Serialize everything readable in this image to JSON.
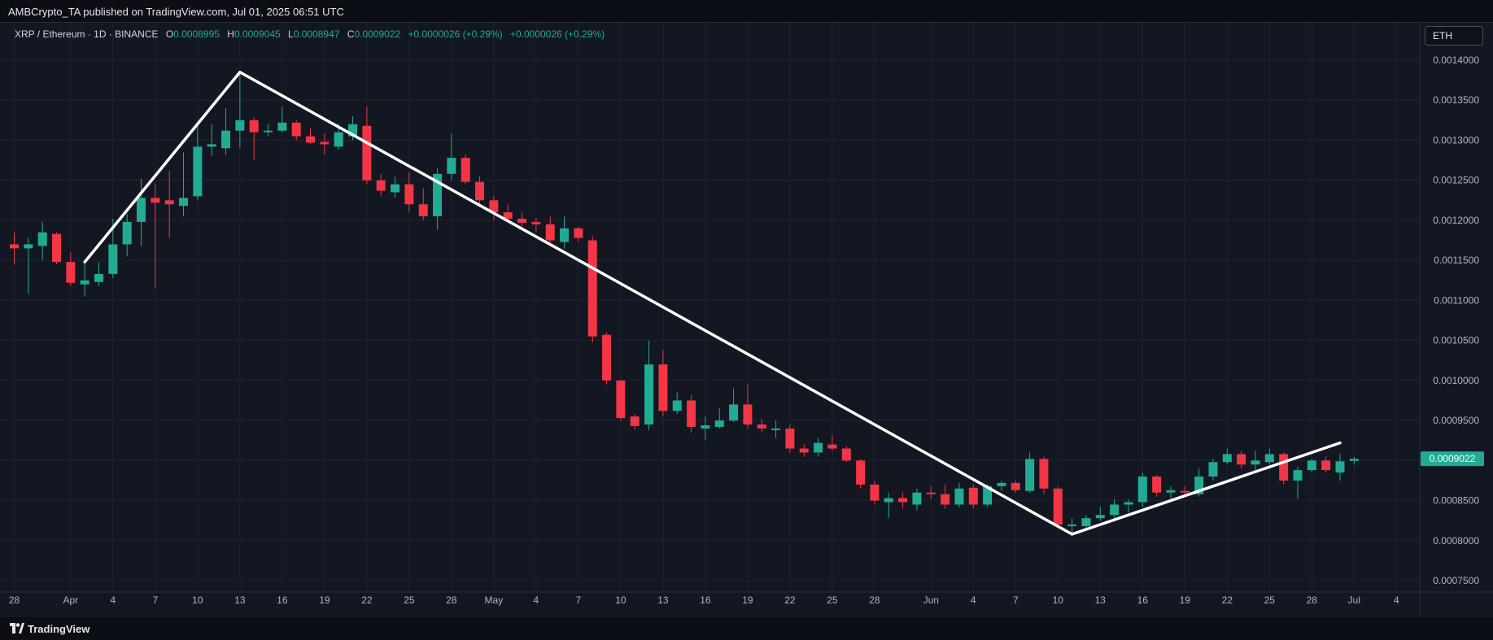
{
  "header": {
    "publish_line": "AMBCrypto_TA published on TradingView.com, Jul 01, 2025 06:51 UTC"
  },
  "legend": {
    "symbol": "XRP / Ethereum · 1D · BINANCE",
    "open_label": "O",
    "open_value": "0.0008995",
    "high_label": "H",
    "high_value": "0.0009045",
    "low_label": "L",
    "low_value": "0.0008947",
    "close_label": "C",
    "close_value": "0.0009022",
    "change1": "+0.0000026 (+0.29%)",
    "change2": "+0.0000026 (+0.29%)"
  },
  "currency_button": "ETH",
  "footer": {
    "brand": "TradingView"
  },
  "colors": {
    "background": "#131722",
    "up": "#22ab94",
    "down": "#f23645",
    "grid": "#1f2330",
    "trendline": "#ffffff"
  },
  "chart_data": {
    "type": "candlestick",
    "symbol": "XRP/ETH",
    "interval": "1D",
    "ylim": [
      0.00074,
      0.00143
    ],
    "y_ticks": [
      "0.0014000",
      "0.0013500",
      "0.0013000",
      "0.0012500",
      "0.0012000",
      "0.0011500",
      "0.0011000",
      "0.0010500",
      "0.0010000",
      "0.0009500",
      "0.0009000",
      "0.0008500",
      "0.0008000",
      "0.0007500"
    ],
    "x_labels": [
      {
        "text": "28",
        "date": "2025-03-28"
      },
      {
        "text": "Apr",
        "date": "2025-04-01"
      },
      {
        "text": "4",
        "date": "2025-04-04"
      },
      {
        "text": "7",
        "date": "2025-04-07"
      },
      {
        "text": "10",
        "date": "2025-04-10"
      },
      {
        "text": "13",
        "date": "2025-04-13"
      },
      {
        "text": "16",
        "date": "2025-04-16"
      },
      {
        "text": "19",
        "date": "2025-04-19"
      },
      {
        "text": "22",
        "date": "2025-04-22"
      },
      {
        "text": "25",
        "date": "2025-04-25"
      },
      {
        "text": "28",
        "date": "2025-04-28"
      },
      {
        "text": "May",
        "date": "2025-05-01"
      },
      {
        "text": "4",
        "date": "2025-05-04"
      },
      {
        "text": "7",
        "date": "2025-05-07"
      },
      {
        "text": "10",
        "date": "2025-05-10"
      },
      {
        "text": "13",
        "date": "2025-05-13"
      },
      {
        "text": "16",
        "date": "2025-05-16"
      },
      {
        "text": "19",
        "date": "2025-05-19"
      },
      {
        "text": "22",
        "date": "2025-05-22"
      },
      {
        "text": "25",
        "date": "2025-05-25"
      },
      {
        "text": "28",
        "date": "2025-05-28"
      },
      {
        "text": "Jun",
        "date": "2025-06-01"
      },
      {
        "text": "4",
        "date": "2025-06-04"
      },
      {
        "text": "7",
        "date": "2025-06-07"
      },
      {
        "text": "10",
        "date": "2025-06-10"
      },
      {
        "text": "13",
        "date": "2025-06-13"
      },
      {
        "text": "16",
        "date": "2025-06-16"
      },
      {
        "text": "19",
        "date": "2025-06-19"
      },
      {
        "text": "22",
        "date": "2025-06-22"
      },
      {
        "text": "25",
        "date": "2025-06-25"
      },
      {
        "text": "28",
        "date": "2025-06-28"
      },
      {
        "text": "Jul",
        "date": "2025-07-01"
      },
      {
        "text": "4",
        "date": "2025-07-04"
      }
    ],
    "last_price": "0.0009022",
    "candles": [
      {
        "date": "2025-03-28",
        "o": 0.00117,
        "h": 0.001185,
        "l": 0.001145,
        "c": 0.001165
      },
      {
        "date": "2025-03-29",
        "o": 0.001165,
        "h": 0.001178,
        "l": 0.001108,
        "c": 0.00117
      },
      {
        "date": "2025-03-30",
        "o": 0.001168,
        "h": 0.001198,
        "l": 0.00115,
        "c": 0.001185
      },
      {
        "date": "2025-03-31",
        "o": 0.001183,
        "h": 0.001185,
        "l": 0.001145,
        "c": 0.001148
      },
      {
        "date": "2025-04-01",
        "o": 0.001148,
        "h": 0.00116,
        "l": 0.001118,
        "c": 0.001122
      },
      {
        "date": "2025-04-02",
        "o": 0.00112,
        "h": 0.00115,
        "l": 0.001105,
        "c": 0.001125
      },
      {
        "date": "2025-04-03",
        "o": 0.001123,
        "h": 0.001148,
        "l": 0.001118,
        "c": 0.001133
      },
      {
        "date": "2025-04-04",
        "o": 0.001133,
        "h": 0.001202,
        "l": 0.001128,
        "c": 0.00117
      },
      {
        "date": "2025-04-05",
        "o": 0.00117,
        "h": 0.001208,
        "l": 0.001155,
        "c": 0.001198
      },
      {
        "date": "2025-04-06",
        "o": 0.001198,
        "h": 0.001252,
        "l": 0.001168,
        "c": 0.001228
      },
      {
        "date": "2025-04-07",
        "o": 0.001228,
        "h": 0.001245,
        "l": 0.001115,
        "c": 0.001222
      },
      {
        "date": "2025-04-08",
        "o": 0.001225,
        "h": 0.001262,
        "l": 0.001178,
        "c": 0.00122
      },
      {
        "date": "2025-04-09",
        "o": 0.001218,
        "h": 0.001285,
        "l": 0.001205,
        "c": 0.001228
      },
      {
        "date": "2025-04-10",
        "o": 0.00123,
        "h": 0.001318,
        "l": 0.001225,
        "c": 0.001292
      },
      {
        "date": "2025-04-11",
        "o": 0.001292,
        "h": 0.00132,
        "l": 0.00128,
        "c": 0.001295
      },
      {
        "date": "2025-04-12",
        "o": 0.00129,
        "h": 0.00134,
        "l": 0.001282,
        "c": 0.001312
      },
      {
        "date": "2025-04-13",
        "o": 0.001312,
        "h": 0.001385,
        "l": 0.00129,
        "c": 0.001325
      },
      {
        "date": "2025-04-14",
        "o": 0.001325,
        "h": 0.001328,
        "l": 0.001275,
        "c": 0.00131
      },
      {
        "date": "2025-04-15",
        "o": 0.00131,
        "h": 0.00132,
        "l": 0.001305,
        "c": 0.001312
      },
      {
        "date": "2025-04-16",
        "o": 0.001312,
        "h": 0.001342,
        "l": 0.00131,
        "c": 0.001322
      },
      {
        "date": "2025-04-17",
        "o": 0.001322,
        "h": 0.001325,
        "l": 0.0013,
        "c": 0.001305
      },
      {
        "date": "2025-04-18",
        "o": 0.001305,
        "h": 0.001315,
        "l": 0.001295,
        "c": 0.001297
      },
      {
        "date": "2025-04-19",
        "o": 0.001298,
        "h": 0.001308,
        "l": 0.001282,
        "c": 0.001295
      },
      {
        "date": "2025-04-20",
        "o": 0.001292,
        "h": 0.00132,
        "l": 0.001288,
        "c": 0.00131
      },
      {
        "date": "2025-04-21",
        "o": 0.001305,
        "h": 0.00133,
        "l": 0.0013,
        "c": 0.00132
      },
      {
        "date": "2025-04-22",
        "o": 0.001318,
        "h": 0.001342,
        "l": 0.001245,
        "c": 0.00125
      },
      {
        "date": "2025-04-23",
        "o": 0.00125,
        "h": 0.001258,
        "l": 0.00123,
        "c": 0.001237
      },
      {
        "date": "2025-04-24",
        "o": 0.001235,
        "h": 0.001255,
        "l": 0.001228,
        "c": 0.001245
      },
      {
        "date": "2025-04-25",
        "o": 0.001245,
        "h": 0.00126,
        "l": 0.00121,
        "c": 0.00122
      },
      {
        "date": "2025-04-26",
        "o": 0.00122,
        "h": 0.00124,
        "l": 0.0012,
        "c": 0.001205
      },
      {
        "date": "2025-04-27",
        "o": 0.001205,
        "h": 0.001265,
        "l": 0.001188,
        "c": 0.001258
      },
      {
        "date": "2025-04-28",
        "o": 0.001258,
        "h": 0.001308,
        "l": 0.00125,
        "c": 0.001278
      },
      {
        "date": "2025-04-29",
        "o": 0.001278,
        "h": 0.001282,
        "l": 0.001245,
        "c": 0.001248
      },
      {
        "date": "2025-04-30",
        "o": 0.001248,
        "h": 0.001255,
        "l": 0.00122,
        "c": 0.001225
      },
      {
        "date": "2025-05-01",
        "o": 0.001225,
        "h": 0.00123,
        "l": 0.0012,
        "c": 0.00121
      },
      {
        "date": "2025-05-02",
        "o": 0.00121,
        "h": 0.00122,
        "l": 0.001198,
        "c": 0.001202
      },
      {
        "date": "2025-05-03",
        "o": 0.001202,
        "h": 0.00121,
        "l": 0.00119,
        "c": 0.001197
      },
      {
        "date": "2025-05-04",
        "o": 0.001198,
        "h": 0.001203,
        "l": 0.001185,
        "c": 0.001195
      },
      {
        "date": "2025-05-05",
        "o": 0.001195,
        "h": 0.001205,
        "l": 0.001168,
        "c": 0.001175
      },
      {
        "date": "2025-05-06",
        "o": 0.001173,
        "h": 0.001205,
        "l": 0.001165,
        "c": 0.00119
      },
      {
        "date": "2025-05-07",
        "o": 0.00119,
        "h": 0.001192,
        "l": 0.001173,
        "c": 0.001178
      },
      {
        "date": "2025-05-08",
        "o": 0.001175,
        "h": 0.00118,
        "l": 0.001048,
        "c": 0.001055
      },
      {
        "date": "2025-05-09",
        "o": 0.001057,
        "h": 0.00106,
        "l": 0.000995,
        "c": 0.001
      },
      {
        "date": "2025-05-10",
        "o": 0.001,
        "h": 0.001,
        "l": 0.00095,
        "c": 0.000953
      },
      {
        "date": "2025-05-11",
        "o": 0.000955,
        "h": 0.000958,
        "l": 0.000938,
        "c": 0.000943
      },
      {
        "date": "2025-05-12",
        "o": 0.000945,
        "h": 0.00105,
        "l": 0.000938,
        "c": 0.00102
      },
      {
        "date": "2025-05-13",
        "o": 0.00102,
        "h": 0.001038,
        "l": 0.000955,
        "c": 0.000962
      },
      {
        "date": "2025-05-14",
        "o": 0.000962,
        "h": 0.000985,
        "l": 0.000958,
        "c": 0.000975
      },
      {
        "date": "2025-05-15",
        "o": 0.000975,
        "h": 0.000982,
        "l": 0.000935,
        "c": 0.000942
      },
      {
        "date": "2025-05-16",
        "o": 0.00094,
        "h": 0.000955,
        "l": 0.000925,
        "c": 0.000944
      },
      {
        "date": "2025-05-17",
        "o": 0.000942,
        "h": 0.000965,
        "l": 0.00094,
        "c": 0.00095
      },
      {
        "date": "2025-05-18",
        "o": 0.00095,
        "h": 0.00099,
        "l": 0.000948,
        "c": 0.00097
      },
      {
        "date": "2025-05-19",
        "o": 0.00097,
        "h": 0.000995,
        "l": 0.00094,
        "c": 0.000945
      },
      {
        "date": "2025-05-20",
        "o": 0.000945,
        "h": 0.000952,
        "l": 0.000935,
        "c": 0.00094
      },
      {
        "date": "2025-05-21",
        "o": 0.000938,
        "h": 0.00095,
        "l": 0.000928,
        "c": 0.00094
      },
      {
        "date": "2025-05-22",
        "o": 0.00094,
        "h": 0.000945,
        "l": 0.00091,
        "c": 0.000915
      },
      {
        "date": "2025-05-23",
        "o": 0.000915,
        "h": 0.00092,
        "l": 0.000905,
        "c": 0.00091
      },
      {
        "date": "2025-05-24",
        "o": 0.00091,
        "h": 0.000928,
        "l": 0.000905,
        "c": 0.000922
      },
      {
        "date": "2025-05-25",
        "o": 0.00092,
        "h": 0.000932,
        "l": 0.000912,
        "c": 0.000915
      },
      {
        "date": "2025-05-26",
        "o": 0.000915,
        "h": 0.000918,
        "l": 0.000898,
        "c": 0.0009
      },
      {
        "date": "2025-05-27",
        "o": 0.0009,
        "h": 0.000902,
        "l": 0.000865,
        "c": 0.00087
      },
      {
        "date": "2025-05-28",
        "o": 0.00087,
        "h": 0.000875,
        "l": 0.000845,
        "c": 0.00085
      },
      {
        "date": "2025-05-29",
        "o": 0.000848,
        "h": 0.00086,
        "l": 0.000828,
        "c": 0.000853
      },
      {
        "date": "2025-05-30",
        "o": 0.000853,
        "h": 0.00086,
        "l": 0.00084,
        "c": 0.000848
      },
      {
        "date": "2025-05-31",
        "o": 0.000845,
        "h": 0.000865,
        "l": 0.000838,
        "c": 0.00086
      },
      {
        "date": "2025-06-01",
        "o": 0.00086,
        "h": 0.000868,
        "l": 0.000852,
        "c": 0.000858
      },
      {
        "date": "2025-06-02",
        "o": 0.000858,
        "h": 0.00087,
        "l": 0.00084,
        "c": 0.000845
      },
      {
        "date": "2025-06-03",
        "o": 0.000845,
        "h": 0.000872,
        "l": 0.000842,
        "c": 0.000865
      },
      {
        "date": "2025-06-04",
        "o": 0.000866,
        "h": 0.00087,
        "l": 0.00084,
        "c": 0.000845
      },
      {
        "date": "2025-06-05",
        "o": 0.000845,
        "h": 0.00087,
        "l": 0.000842,
        "c": 0.000868
      },
      {
        "date": "2025-06-06",
        "o": 0.000868,
        "h": 0.000875,
        "l": 0.000862,
        "c": 0.000872
      },
      {
        "date": "2025-06-07",
        "o": 0.000872,
        "h": 0.000875,
        "l": 0.00086,
        "c": 0.000863
      },
      {
        "date": "2025-06-08",
        "o": 0.000862,
        "h": 0.00091,
        "l": 0.00086,
        "c": 0.000902
      },
      {
        "date": "2025-06-09",
        "o": 0.000902,
        "h": 0.000905,
        "l": 0.000858,
        "c": 0.000865
      },
      {
        "date": "2025-06-10",
        "o": 0.000865,
        "h": 0.000867,
        "l": 0.000818,
        "c": 0.00082
      },
      {
        "date": "2025-06-11",
        "o": 0.000818,
        "h": 0.000828,
        "l": 0.00081,
        "c": 0.00082
      },
      {
        "date": "2025-06-12",
        "o": 0.000818,
        "h": 0.000832,
        "l": 0.000815,
        "c": 0.000828
      },
      {
        "date": "2025-06-13",
        "o": 0.000828,
        "h": 0.000842,
        "l": 0.000825,
        "c": 0.000832
      },
      {
        "date": "2025-06-14",
        "o": 0.000832,
        "h": 0.000852,
        "l": 0.000828,
        "c": 0.000845
      },
      {
        "date": "2025-06-15",
        "o": 0.000845,
        "h": 0.000852,
        "l": 0.000835,
        "c": 0.000848
      },
      {
        "date": "2025-06-16",
        "o": 0.000848,
        "h": 0.000885,
        "l": 0.000842,
        "c": 0.00088
      },
      {
        "date": "2025-06-17",
        "o": 0.00088,
        "h": 0.000882,
        "l": 0.000855,
        "c": 0.00086
      },
      {
        "date": "2025-06-18",
        "o": 0.00086,
        "h": 0.000868,
        "l": 0.000852,
        "c": 0.000863
      },
      {
        "date": "2025-06-19",
        "o": 0.000862,
        "h": 0.000868,
        "l": 0.000855,
        "c": 0.00086
      },
      {
        "date": "2025-06-20",
        "o": 0.000858,
        "h": 0.00089,
        "l": 0.000855,
        "c": 0.00088
      },
      {
        "date": "2025-06-21",
        "o": 0.00088,
        "h": 0.000902,
        "l": 0.000875,
        "c": 0.000898
      },
      {
        "date": "2025-06-22",
        "o": 0.000898,
        "h": 0.000915,
        "l": 0.000895,
        "c": 0.000908
      },
      {
        "date": "2025-06-23",
        "o": 0.000908,
        "h": 0.000912,
        "l": 0.00089,
        "c": 0.000895
      },
      {
        "date": "2025-06-24",
        "o": 0.000895,
        "h": 0.000912,
        "l": 0.000888,
        "c": 0.0009
      },
      {
        "date": "2025-06-25",
        "o": 0.000898,
        "h": 0.000915,
        "l": 0.000895,
        "c": 0.000908
      },
      {
        "date": "2025-06-26",
        "o": 0.000908,
        "h": 0.00091,
        "l": 0.00087,
        "c": 0.000875
      },
      {
        "date": "2025-06-27",
        "o": 0.000875,
        "h": 0.000892,
        "l": 0.000852,
        "c": 0.000888
      },
      {
        "date": "2025-06-28",
        "o": 0.000888,
        "h": 0.000902,
        "l": 0.000885,
        "c": 0.0009
      },
      {
        "date": "2025-06-29",
        "o": 0.0009,
        "h": 0.000905,
        "l": 0.000885,
        "c": 0.000888
      },
      {
        "date": "2025-06-30",
        "o": 0.000885,
        "h": 0.000908,
        "l": 0.000875,
        "c": 0.000899
      },
      {
        "date": "2025-07-01",
        "o": 0.0008995,
        "h": 0.0009045,
        "l": 0.0008947,
        "c": 0.0009022
      }
    ],
    "trendlines": [
      {
        "from": {
          "date": "2025-04-02",
          "price": 0.001148
        },
        "to": {
          "date": "2025-04-13",
          "price": 0.001385
        }
      },
      {
        "from": {
          "date": "2025-04-13",
          "price": 0.001385
        },
        "to": {
          "date": "2025-06-11",
          "price": 0.000808
        }
      },
      {
        "from": {
          "date": "2025-06-11",
          "price": 0.000808
        },
        "to": {
          "date": "2025-06-30",
          "price": 0.000922
        }
      }
    ]
  }
}
